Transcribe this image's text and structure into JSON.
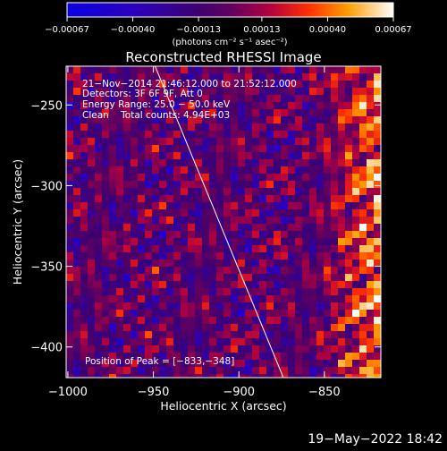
{
  "chart_data": {
    "type": "heatmap",
    "title": "Reconstructed RHESSI Image",
    "xlabel": "Heliocentric X (arcsec)",
    "ylabel": "Heliocentric Y (arcsec)",
    "xlim": [
      -1001,
      -817
    ],
    "ylim": [
      -419,
      -226
    ],
    "xticks": [
      -1000,
      -950,
      -900,
      -850
    ],
    "xtick_labels": [
      "−1000",
      "−950",
      "−900",
      "−850"
    ],
    "yticks": [
      -250,
      -300,
      -350,
      -400
    ],
    "ytick_labels": [
      "−250",
      "−300",
      "−350",
      "−400"
    ],
    "colorbar": {
      "range": [
        -0.00067,
        0.00067
      ],
      "ticks": [
        -0.00067,
        -0.0004,
        -0.00013,
        0.00013,
        0.0004,
        0.00067
      ],
      "tick_labels": [
        "−0.00067",
        "−0.00040",
        "−0.00013",
        "0.00013",
        "0.00040",
        "0.00067"
      ],
      "unit_label": "(photons cm⁻² s⁻¹ asec⁻²)"
    },
    "annotations": [
      "21−Nov−2014 21:46:12.000 to 21:52:12.000",
      "Detectors: 3F 6F 9F, Att 0",
      "Energy Range: 25.0 − 50.0 keV",
      "Clean    Total counts: 4.94E+03"
    ],
    "peak_label": "Position of Peak = [−833,−348]",
    "peak": [
      -833,
      -348
    ],
    "limb_line": [
      [
        -949,
        -226
      ],
      [
        -874,
        -419
      ]
    ],
    "grid": false,
    "legend": "none",
    "colors": {
      "background": "#000000",
      "text": "#ffffff"
    }
  },
  "footer": {
    "timestamp": "19−May−2022 18:42"
  }
}
